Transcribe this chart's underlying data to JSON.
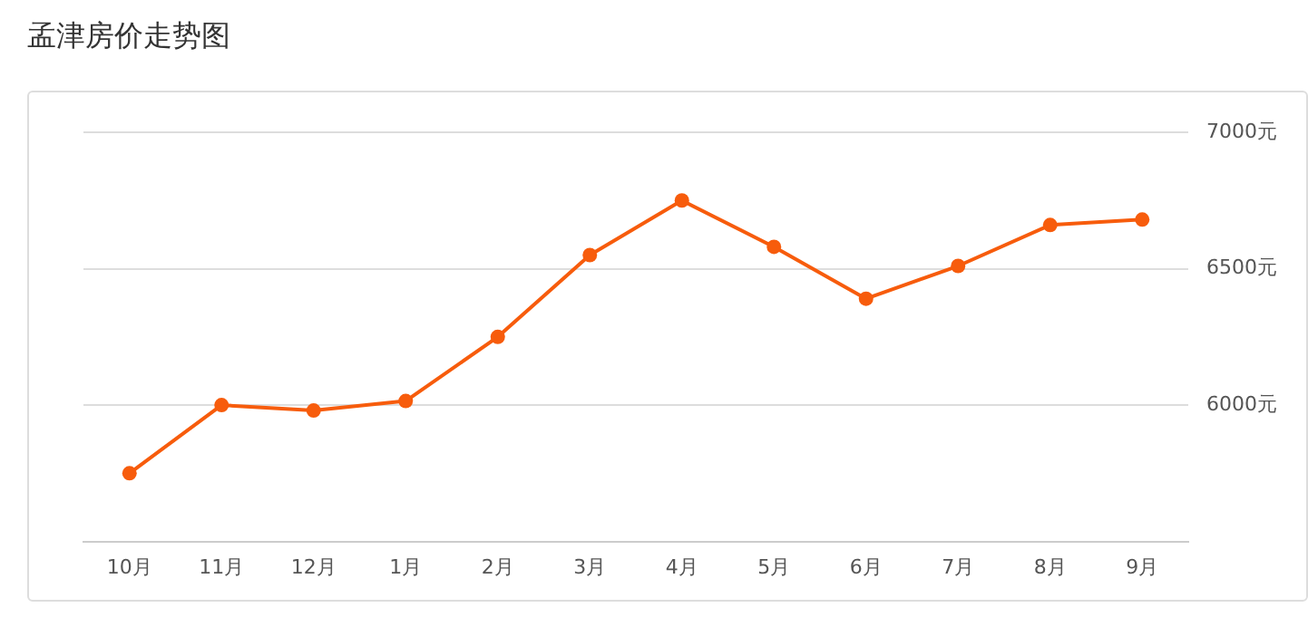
{
  "chart_data": {
    "type": "line",
    "title": "孟津房价走势图",
    "categories": [
      "10月",
      "11月",
      "12月",
      "1月",
      "2月",
      "3月",
      "4月",
      "5月",
      "6月",
      "7月",
      "8月",
      "9月"
    ],
    "series": [
      {
        "color": "#f75c0c",
        "values": [
          5750,
          6000,
          5980,
          6015,
          6250,
          6550,
          6750,
          6580,
          6390,
          6510,
          6660,
          6680
        ]
      }
    ],
    "ylim": [
      5500,
      7000
    ],
    "yticks": [
      {
        "value": 6000,
        "label": "6000元"
      },
      {
        "value": 6500,
        "label": "6500元"
      },
      {
        "value": 7000,
        "label": "7000元"
      }
    ],
    "grid": "y",
    "legend": false,
    "marker": "circle",
    "line_style": "solid"
  }
}
